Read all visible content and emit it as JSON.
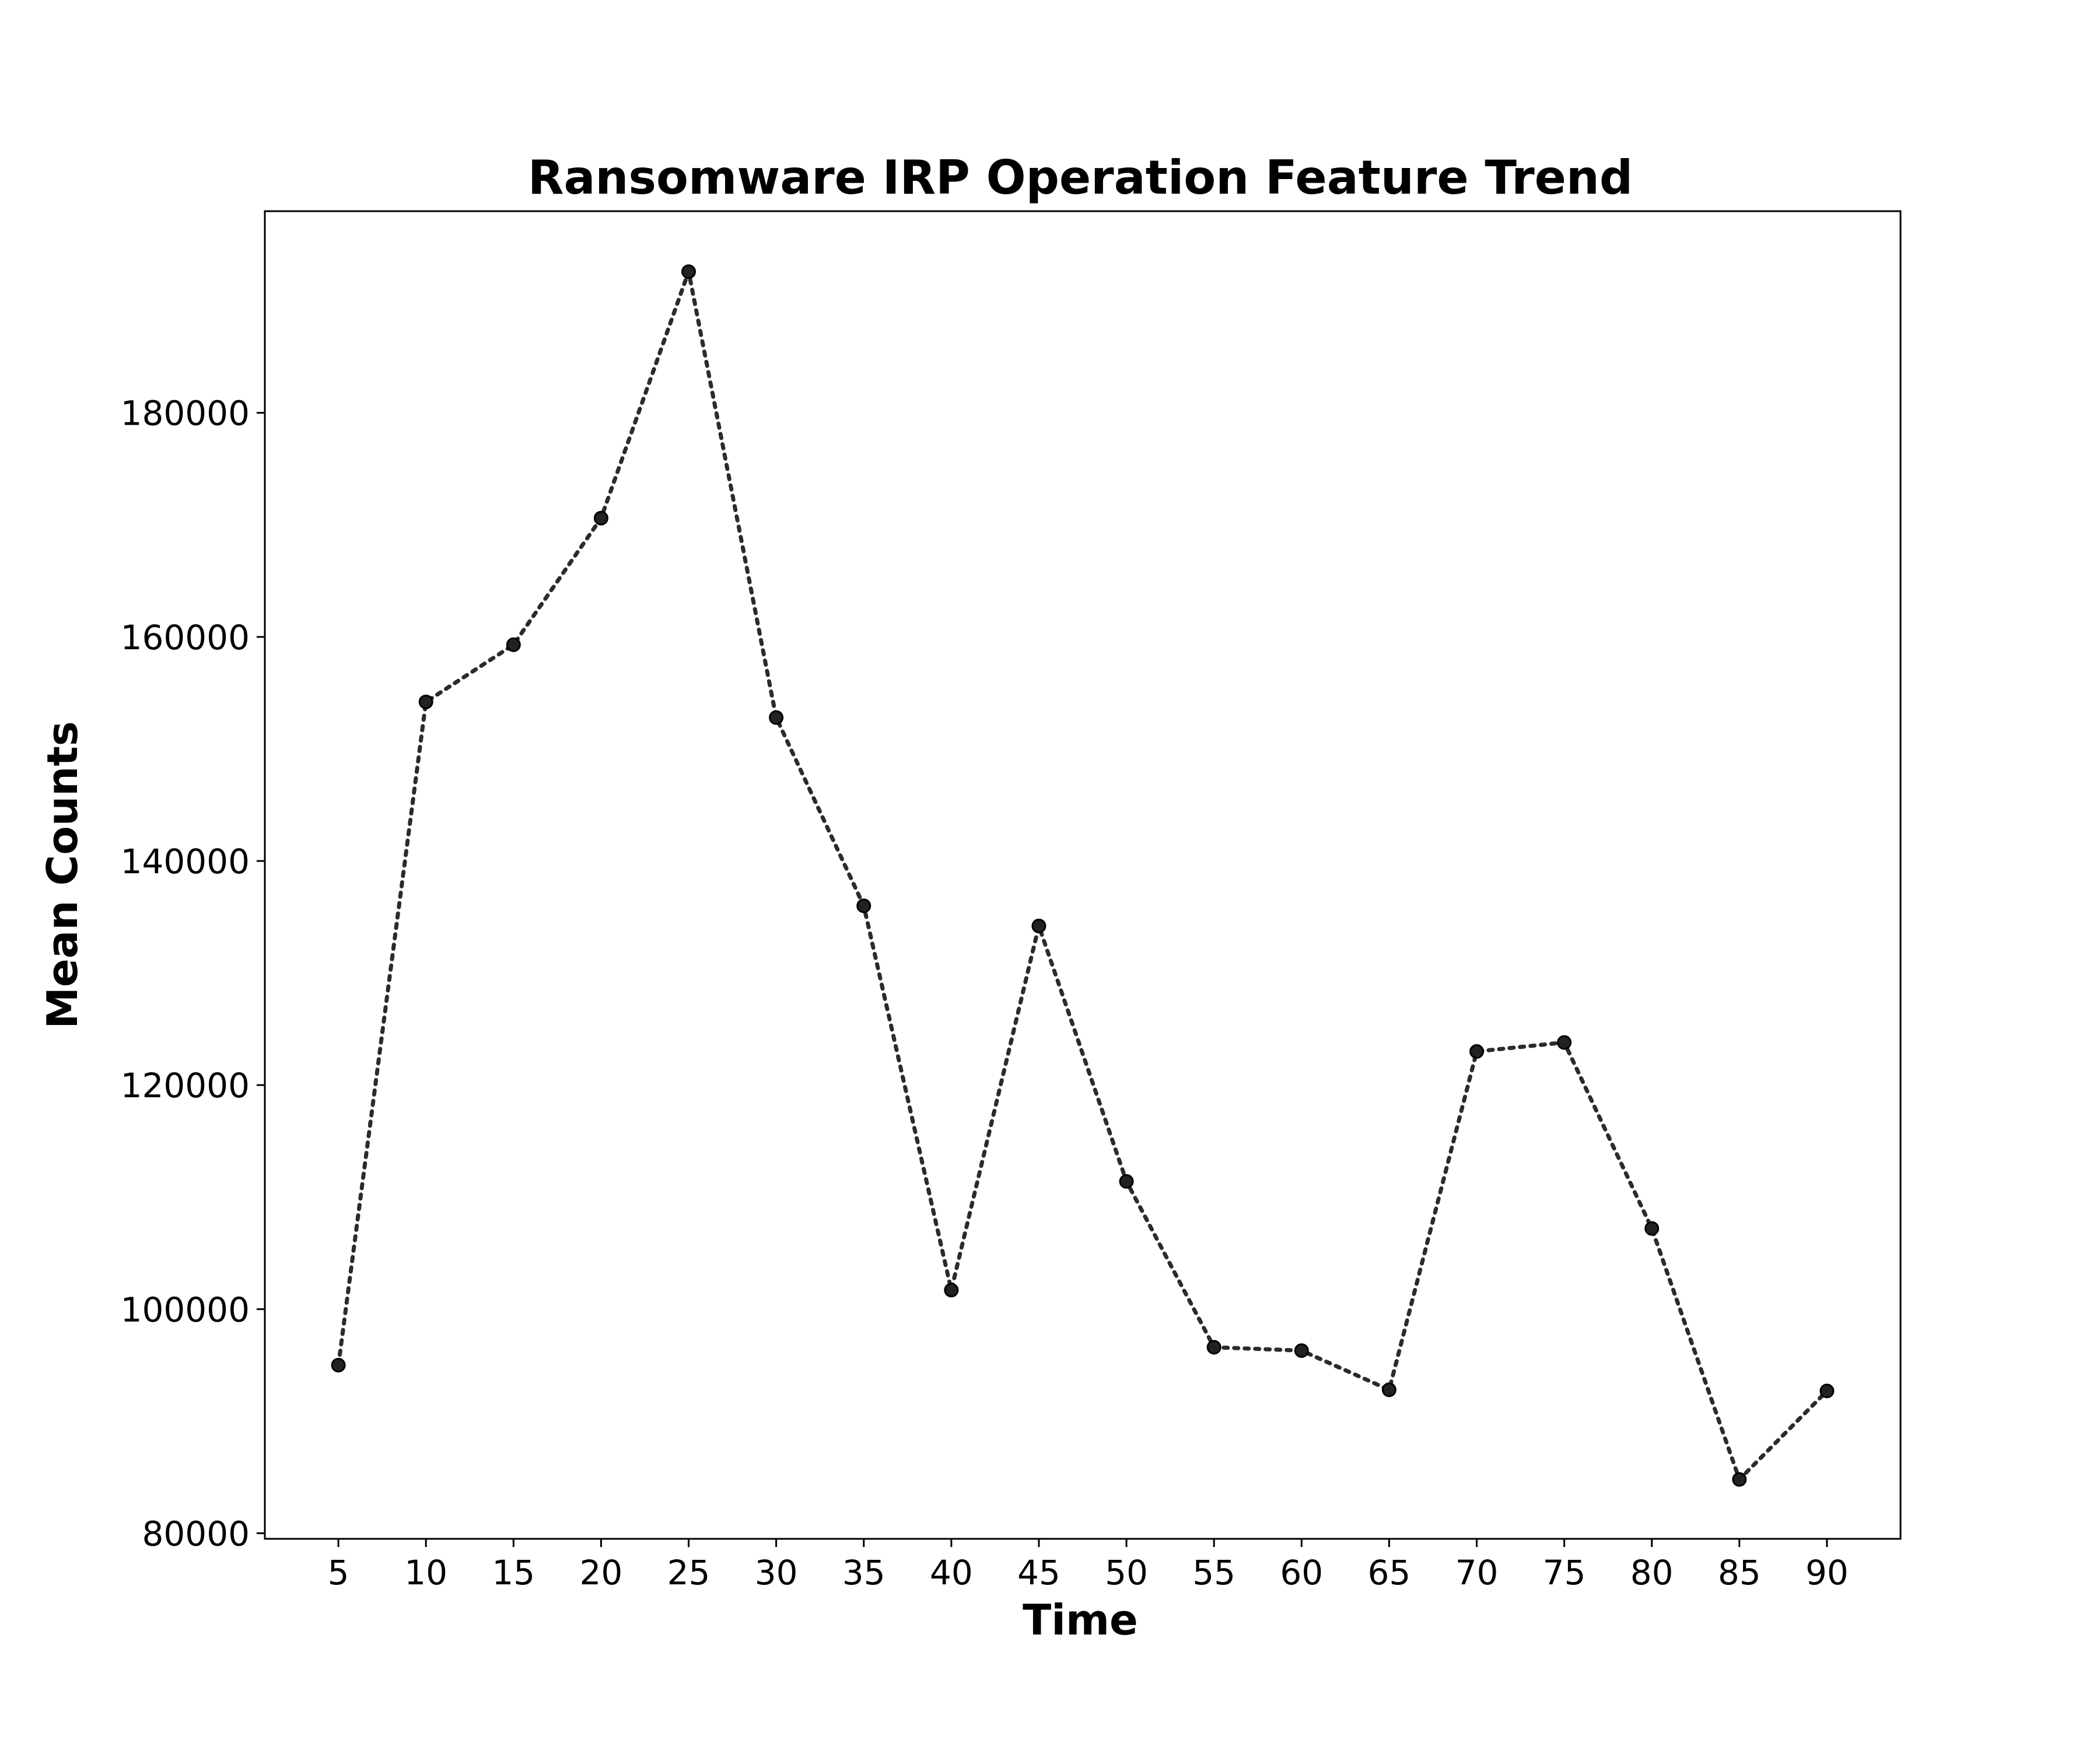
{
  "chart_data": {
    "type": "line",
    "title": "Ransomware IRP Operation Feature Trend",
    "xlabel": "Time",
    "ylabel": "Mean Counts",
    "x": [
      5,
      10,
      15,
      20,
      25,
      30,
      35,
      40,
      45,
      50,
      55,
      60,
      65,
      70,
      75,
      80,
      85,
      90
    ],
    "series": [
      {
        "values": [
          95000,
          154200,
          159300,
          170600,
          192600,
          152800,
          136000,
          101700,
          134200,
          111400,
          96600,
          96300,
          92800,
          123000,
          123800,
          107200,
          84800,
          92700
        ]
      }
    ],
    "xticks": [
      "5",
      "10",
      "15",
      "20",
      "25",
      "30",
      "35",
      "40",
      "45",
      "50",
      "55",
      "60",
      "65",
      "70",
      "75",
      "80",
      "85",
      "90"
    ],
    "yticks": [
      "80000",
      "100000",
      "120000",
      "140000",
      "160000",
      "180000"
    ],
    "xlim": [
      0.8,
      94.2
    ],
    "ylim": [
      79500,
      198000
    ],
    "grid": false,
    "legend": "none",
    "line_style": "dotted",
    "marker": "circle",
    "color": "#2b2b2b"
  }
}
